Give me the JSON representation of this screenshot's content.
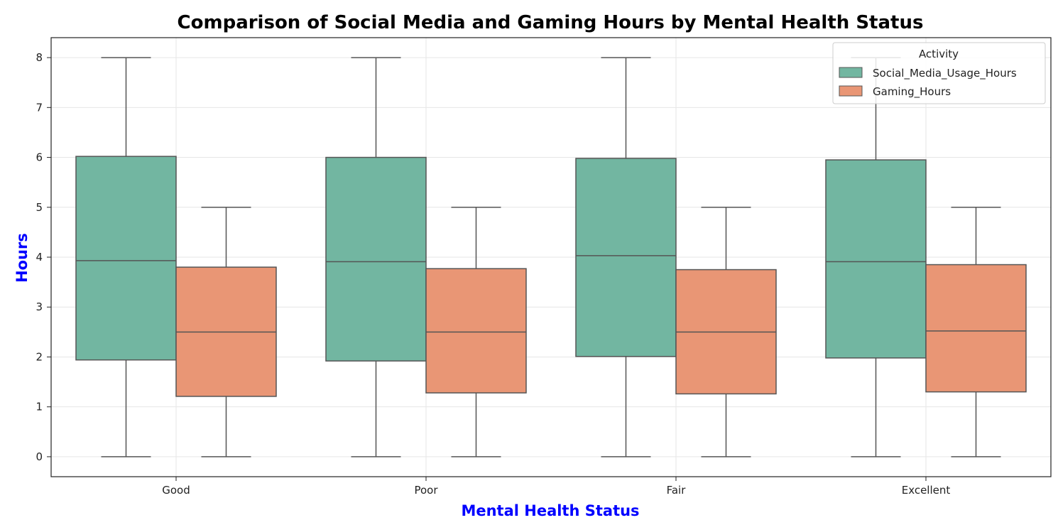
{
  "chart_data": {
    "type": "box",
    "title": "Comparison of Social Media and Gaming Hours by Mental Health Status",
    "xlabel": "Mental Health Status",
    "ylabel": "Hours",
    "categories": [
      "Good",
      "Poor",
      "Fair",
      "Excellent"
    ],
    "ylim": [
      -0.4,
      8.4
    ],
    "yticks": [
      0,
      1,
      2,
      3,
      4,
      5,
      6,
      7,
      8
    ],
    "grid": true,
    "legend": {
      "title": "Activity",
      "placement": "top-right"
    },
    "series": [
      {
        "name": "Social_Media_Usage_Hours",
        "color": "#72b6a1",
        "boxes": [
          {
            "min": 0,
            "q1": 1.94,
            "median": 3.93,
            "q3": 6.02,
            "max": 8
          },
          {
            "min": 0,
            "q1": 1.92,
            "median": 3.91,
            "q3": 6.0,
            "max": 8
          },
          {
            "min": 0,
            "q1": 2.01,
            "median": 4.03,
            "q3": 5.98,
            "max": 8
          },
          {
            "min": 0,
            "q1": 1.98,
            "median": 3.91,
            "q3": 5.95,
            "max": 8
          }
        ]
      },
      {
        "name": "Gaming_Hours",
        "color": "#e99675",
        "boxes": [
          {
            "min": 0,
            "q1": 1.21,
            "median": 2.5,
            "q3": 3.8,
            "max": 5
          },
          {
            "min": 0,
            "q1": 1.28,
            "median": 2.5,
            "q3": 3.77,
            "max": 5
          },
          {
            "min": 0,
            "q1": 1.26,
            "median": 2.5,
            "q3": 3.75,
            "max": 5
          },
          {
            "min": 0,
            "q1": 1.3,
            "median": 2.52,
            "q3": 3.85,
            "max": 5
          }
        ]
      }
    ]
  }
}
